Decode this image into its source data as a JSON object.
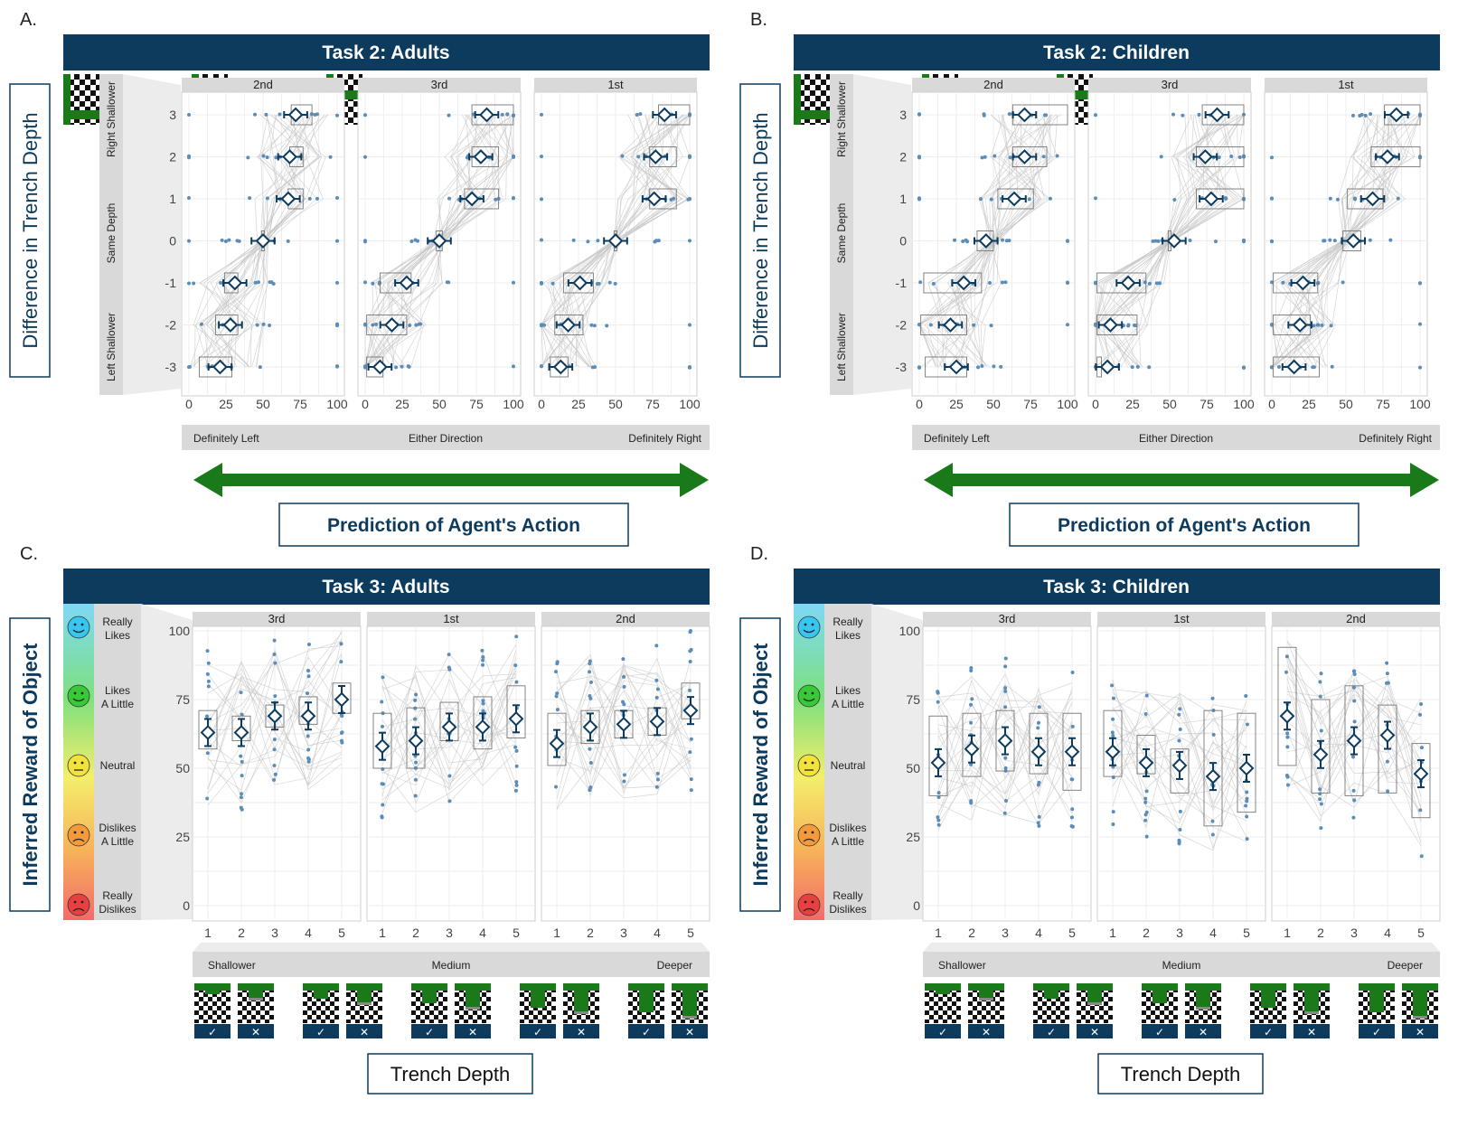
{
  "chart_data": [
    {
      "panel_letter": "A.",
      "title": "Task 2: Adults",
      "type": "box",
      "ylabel": "Difference in Trench Depth",
      "y_group_labels": [
        "Right Shallower",
        "Same Depth",
        "Left Shallower"
      ],
      "y_ticks": [
        "3",
        "2",
        "1",
        "0",
        "-1",
        "-2",
        "-3"
      ],
      "x_ticks": [
        "0",
        "25",
        "50",
        "75",
        "100"
      ],
      "x_scale_labels": [
        "Definitely Left",
        "Either Direction",
        "Definitely Right"
      ],
      "xlabel": "Prediction of Agent's Action",
      "xlim": [
        0,
        100
      ],
      "facets": [
        {
          "name": "2nd",
          "means": [
            {
              "y": 3,
              "x": 72
            },
            {
              "y": 2,
              "x": 68
            },
            {
              "y": 1,
              "x": 67
            },
            {
              "y": 0,
              "x": 50
            },
            {
              "y": -1,
              "x": 31
            },
            {
              "y": -2,
              "x": 28
            },
            {
              "y": -3,
              "x": 21
            }
          ],
          "boxes": [
            {
              "y": 3,
              "q1": 69,
              "q3": 83
            },
            {
              "y": 2,
              "q1": 68,
              "q3": 77
            },
            {
              "y": 1,
              "q1": 67,
              "q3": 77
            },
            {
              "y": 0,
              "q1": 49,
              "q3": 51
            },
            {
              "y": -1,
              "q1": 24,
              "q3": 33
            },
            {
              "y": -2,
              "q1": 18,
              "q3": 33
            },
            {
              "y": -3,
              "q1": 7,
              "q3": 29
            }
          ]
        },
        {
          "name": "3rd",
          "means": [
            {
              "y": 3,
              "x": 82
            },
            {
              "y": 2,
              "x": 78
            },
            {
              "y": 1,
              "x": 72
            },
            {
              "y": 0,
              "x": 50
            },
            {
              "y": -1,
              "x": 28
            },
            {
              "y": -2,
              "x": 18
            },
            {
              "y": -3,
              "x": 10
            }
          ],
          "boxes": [
            {
              "y": 3,
              "q1": 72,
              "q3": 100
            },
            {
              "y": 2,
              "q1": 72,
              "q3": 90
            },
            {
              "y": 1,
              "q1": 67,
              "q3": 90
            },
            {
              "y": 0,
              "q1": 48,
              "q3": 52
            },
            {
              "y": -1,
              "q1": 10,
              "q3": 31
            },
            {
              "y": -2,
              "q1": 1,
              "q3": 28
            },
            {
              "y": -3,
              "q1": 1,
              "q3": 12
            }
          ]
        },
        {
          "name": "1st",
          "means": [
            {
              "y": 3,
              "x": 83
            },
            {
              "y": 2,
              "x": 77
            },
            {
              "y": 1,
              "x": 76
            },
            {
              "y": 0,
              "x": 50
            },
            {
              "y": -1,
              "x": 26
            },
            {
              "y": -2,
              "x": 18
            },
            {
              "y": -3,
              "x": 13
            }
          ],
          "boxes": [
            {
              "y": 3,
              "q1": 79,
              "q3": 100
            },
            {
              "y": 2,
              "q1": 73,
              "q3": 91
            },
            {
              "y": 1,
              "q1": 73,
              "q3": 91
            },
            {
              "y": 0,
              "q1": 49,
              "q3": 51
            },
            {
              "y": -1,
              "q1": 15,
              "q3": 35
            },
            {
              "y": -2,
              "q1": 9,
              "q3": 28
            },
            {
              "y": -3,
              "q1": 6,
              "q3": 18
            }
          ]
        }
      ]
    },
    {
      "panel_letter": "B.",
      "title": "Task 2: Children",
      "type": "box",
      "ylabel": "Difference in Trench Depth",
      "y_group_labels": [
        "Right Shallower",
        "Same Depth",
        "Left Shallower"
      ],
      "y_ticks": [
        "3",
        "2",
        "1",
        "0",
        "-1",
        "-2",
        "-3"
      ],
      "x_ticks": [
        "0",
        "25",
        "50",
        "75",
        "100"
      ],
      "x_scale_labels": [
        "Definitely Left",
        "Either Direction",
        "Definitely Right"
      ],
      "xlabel": "Prediction of Agent's Action",
      "xlim": [
        0,
        100
      ],
      "facets": [
        {
          "name": "2nd",
          "means": [
            {
              "y": 3,
              "x": 71
            },
            {
              "y": 2,
              "x": 71
            },
            {
              "y": 1,
              "x": 64
            },
            {
              "y": 0,
              "x": 45
            },
            {
              "y": -1,
              "x": 30
            },
            {
              "y": -2,
              "x": 21
            },
            {
              "y": -3,
              "x": 25
            }
          ],
          "boxes": [
            {
              "y": 3,
              "q1": 63,
              "q3": 100
            },
            {
              "y": 2,
              "q1": 63,
              "q3": 86
            },
            {
              "y": 1,
              "q1": 53,
              "q3": 77
            },
            {
              "y": 0,
              "q1": 39,
              "q3": 50
            },
            {
              "y": -1,
              "q1": 3,
              "q3": 42
            },
            {
              "y": -2,
              "q1": 1,
              "q3": 32
            },
            {
              "y": -3,
              "q1": 4,
              "q3": 32
            }
          ]
        },
        {
          "name": "3rd",
          "means": [
            {
              "y": 3,
              "x": 82
            },
            {
              "y": 2,
              "x": 74
            },
            {
              "y": 1,
              "x": 78
            },
            {
              "y": 0,
              "x": 53
            },
            {
              "y": -1,
              "x": 22
            },
            {
              "y": -2,
              "x": 10
            },
            {
              "y": -3,
              "x": 8
            }
          ],
          "boxes": [
            {
              "y": 3,
              "q1": 72,
              "q3": 100
            },
            {
              "y": 2,
              "q1": 68,
              "q3": 100
            },
            {
              "y": 1,
              "q1": 68,
              "q3": 100
            },
            {
              "y": 0,
              "q1": 49,
              "q3": 51
            },
            {
              "y": -1,
              "q1": 1,
              "q3": 34
            },
            {
              "y": -2,
              "q1": 1,
              "q3": 28
            },
            {
              "y": -3,
              "q1": 1,
              "q3": 4
            }
          ]
        },
        {
          "name": "1st",
          "means": [
            {
              "y": 3,
              "x": 84
            },
            {
              "y": 2,
              "x": 78
            },
            {
              "y": 1,
              "x": 68
            },
            {
              "y": 0,
              "x": 55
            },
            {
              "y": -1,
              "x": 21
            },
            {
              "y": -2,
              "x": 19
            },
            {
              "y": -3,
              "x": 15
            }
          ],
          "boxes": [
            {
              "y": 3,
              "q1": 76,
              "q3": 100
            },
            {
              "y": 2,
              "q1": 67,
              "q3": 100
            },
            {
              "y": 1,
              "q1": 51,
              "q3": 75
            },
            {
              "y": 0,
              "q1": 48,
              "q3": 60
            },
            {
              "y": -1,
              "q1": 1,
              "q3": 31
            },
            {
              "y": -2,
              "q1": 1,
              "q3": 26
            },
            {
              "y": -3,
              "q1": 1,
              "q3": 32
            }
          ]
        }
      ]
    },
    {
      "panel_letter": "C.",
      "title": "Task 3: Adults",
      "type": "box",
      "ylabel": "Inferred Reward of Object",
      "y_scale_labels": [
        "Really Likes",
        "Likes A Little",
        "Neutral",
        "Dislikes A Little",
        "Really Dislikes"
      ],
      "y_ticks": [
        "100",
        "75",
        "50",
        "25",
        "0"
      ],
      "x_ticks": [
        "1",
        "2",
        "3",
        "4",
        "5"
      ],
      "x_scale_labels": [
        "Shallower",
        "Medium",
        "Deeper"
      ],
      "xlabel": "Trench Depth",
      "ylim": [
        0,
        100
      ],
      "facets": [
        {
          "name": "3rd",
          "means": [
            {
              "x": 1,
              "y": 63
            },
            {
              "x": 2,
              "y": 63
            },
            {
              "x": 3,
              "y": 69
            },
            {
              "x": 4,
              "y": 69
            },
            {
              "x": 5,
              "y": 75
            }
          ],
          "boxes": [
            {
              "x": 1,
              "q1": 57,
              "q3": 71
            },
            {
              "x": 2,
              "q1": 60,
              "q3": 69
            },
            {
              "x": 3,
              "q1": 65,
              "q3": 73
            },
            {
              "x": 4,
              "q1": 66,
              "q3": 76
            },
            {
              "x": 5,
              "q1": 70,
              "q3": 81
            }
          ]
        },
        {
          "name": "1st",
          "means": [
            {
              "x": 1,
              "y": 58
            },
            {
              "x": 2,
              "y": 60
            },
            {
              "x": 3,
              "y": 65
            },
            {
              "x": 4,
              "y": 65
            },
            {
              "x": 5,
              "y": 68
            }
          ],
          "boxes": [
            {
              "x": 1,
              "q1": 50,
              "q3": 70
            },
            {
              "x": 2,
              "q1": 50,
              "q3": 72
            },
            {
              "x": 3,
              "q1": 60,
              "q3": 74
            },
            {
              "x": 4,
              "q1": 57,
              "q3": 76
            },
            {
              "x": 5,
              "q1": 61,
              "q3": 80
            }
          ]
        },
        {
          "name": "2nd",
          "means": [
            {
              "x": 1,
              "y": 59
            },
            {
              "x": 2,
              "y": 65
            },
            {
              "x": 3,
              "y": 66
            },
            {
              "x": 4,
              "y": 67
            },
            {
              "x": 5,
              "y": 71
            }
          ],
          "boxes": [
            {
              "x": 1,
              "q1": 51,
              "q3": 70
            },
            {
              "x": 2,
              "q1": 59,
              "q3": 71
            },
            {
              "x": 3,
              "q1": 61,
              "q3": 71
            },
            {
              "x": 4,
              "q1": 62,
              "q3": 72
            },
            {
              "x": 5,
              "q1": 68,
              "q3": 81
            }
          ]
        }
      ]
    },
    {
      "panel_letter": "D.",
      "title": "Task 3: Children",
      "type": "box",
      "ylabel": "Inferred Reward of Object",
      "y_scale_labels": [
        "Really Likes",
        "Likes A Little",
        "Neutral",
        "Dislikes A Little",
        "Really Dislikes"
      ],
      "y_ticks": [
        "100",
        "75",
        "50",
        "25",
        "0"
      ],
      "x_ticks": [
        "1",
        "2",
        "3",
        "4",
        "5"
      ],
      "x_scale_labels": [
        "Shallower",
        "Medium",
        "Deeper"
      ],
      "xlabel": "Trench Depth",
      "ylim": [
        0,
        100
      ],
      "facets": [
        {
          "name": "3rd",
          "means": [
            {
              "x": 1,
              "y": 52
            },
            {
              "x": 2,
              "y": 57
            },
            {
              "x": 3,
              "y": 60
            },
            {
              "x": 4,
              "y": 56
            },
            {
              "x": 5,
              "y": 56
            }
          ],
          "boxes": [
            {
              "x": 1,
              "q1": 40,
              "q3": 69
            },
            {
              "x": 2,
              "q1": 47,
              "q3": 70
            },
            {
              "x": 3,
              "q1": 49,
              "q3": 71
            },
            {
              "x": 4,
              "q1": 48,
              "q3": 70
            },
            {
              "x": 5,
              "q1": 42,
              "q3": 70
            }
          ]
        },
        {
          "name": "1st",
          "means": [
            {
              "x": 1,
              "y": 56
            },
            {
              "x": 2,
              "y": 52
            },
            {
              "x": 3,
              "y": 51
            },
            {
              "x": 4,
              "y": 47
            },
            {
              "x": 5,
              "y": 50
            }
          ],
          "boxes": [
            {
              "x": 1,
              "q1": 47,
              "q3": 71
            },
            {
              "x": 2,
              "q1": 48,
              "q3": 62
            },
            {
              "x": 3,
              "q1": 41,
              "q3": 57
            },
            {
              "x": 4,
              "q1": 29,
              "q3": 71
            },
            {
              "x": 5,
              "q1": 34,
              "q3": 70
            }
          ]
        },
        {
          "name": "2nd",
          "means": [
            {
              "x": 1,
              "y": 69
            },
            {
              "x": 2,
              "y": 55
            },
            {
              "x": 3,
              "y": 60
            },
            {
              "x": 4,
              "y": 62
            },
            {
              "x": 5,
              "y": 48
            }
          ],
          "boxes": [
            {
              "x": 1,
              "q1": 51,
              "q3": 94
            },
            {
              "x": 2,
              "q1": 41,
              "q3": 75
            },
            {
              "x": 3,
              "q1": 40,
              "q3": 80
            },
            {
              "x": 4,
              "q1": 41,
              "q3": 73
            },
            {
              "x": 5,
              "q1": 32,
              "q3": 59
            }
          ]
        }
      ]
    }
  ],
  "colors": {
    "banner": "#0d3b5e",
    "mean": "#0d3b5e",
    "points": "#5b8db8",
    "arrow": "#1a7a1a",
    "strip": "#d9d9d9"
  },
  "check_cross": [
    "✓",
    "✕"
  ]
}
